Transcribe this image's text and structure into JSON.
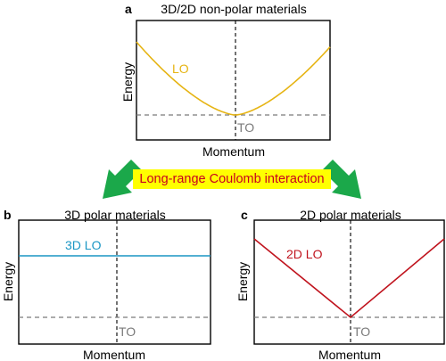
{
  "colors": {
    "lo_top": "#e6b413",
    "lo_3d": "#1a96c4",
    "lo_2d": "#c0141e",
    "to_gray": "#7a7a7a",
    "arrow_green": "#1ba84a",
    "banner_bg": "#ffff00",
    "banner_text": "#c8001e"
  },
  "panel_a": {
    "letter": "a",
    "title": "3D/2D non-polar materials",
    "ylabel": "Energy",
    "xlabel": "Momentum",
    "lo_label": "LO",
    "to_label": "TO"
  },
  "banner": {
    "text": "Long-range Coulomb interaction"
  },
  "panel_b": {
    "letter": "b",
    "title": "3D polar materials",
    "ylabel": "Energy",
    "xlabel": "Momentum",
    "lo_label": "3D LO",
    "to_label": "TO"
  },
  "panel_c": {
    "letter": "c",
    "title": "2D polar materials",
    "ylabel": "Energy",
    "xlabel": "Momentum",
    "lo_label": "2D LO",
    "to_label": "TO"
  },
  "icons": [
    "arrow-down-left-icon",
    "arrow-down-right-icon"
  ]
}
